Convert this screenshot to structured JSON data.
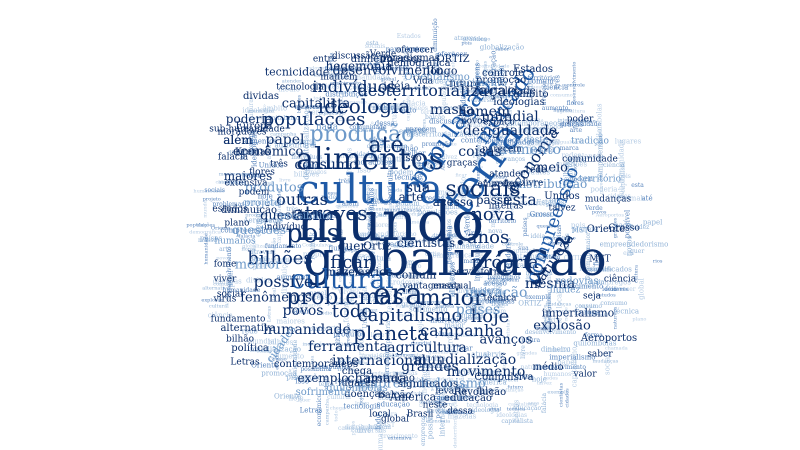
{
  "palette": {
    "dark": "#0b2e6b",
    "mid": "#1f5aa6",
    "light": "#6d99c9",
    "pale": "#9dbbdc"
  },
  "words": [
    {
      "t": "globalização",
      "c": "dark",
      "r": 0
    },
    {
      "t": "mundo",
      "c": "dark",
      "r": 0
    },
    {
      "t": "cultura",
      "c": "mid",
      "r": 0
    },
    {
      "t": "terra",
      "c": "mid",
      "r": -55
    },
    {
      "t": "alimentos",
      "c": "dark",
      "r": 0
    },
    {
      "t": "cultural",
      "c": "mid",
      "r": 0
    },
    {
      "t": "era",
      "c": "dark",
      "r": 0
    },
    {
      "t": "população",
      "c": "mid",
      "r": -55
    },
    {
      "t": "produção",
      "c": "light",
      "r": 0
    },
    {
      "t": "ideologia",
      "c": "dark",
      "r": 0
    },
    {
      "t": "problemas",
      "c": "dark",
      "r": 0
    },
    {
      "t": "maior",
      "c": "dark",
      "r": 0
    },
    {
      "t": "sociais",
      "c": "dark",
      "r": 0
    },
    {
      "t": "atraves",
      "c": "dark",
      "r": 0
    },
    {
      "t": "populações",
      "c": "dark",
      "r": 0
    },
    {
      "t": "até",
      "c": "dark",
      "r": 0
    },
    {
      "t": "pois",
      "c": "dark",
      "r": 0
    },
    {
      "t": "bilhões",
      "c": "dark",
      "r": 0
    },
    {
      "t": "outras",
      "c": "dark",
      "r": 0
    },
    {
      "t": "planeta",
      "c": "dark",
      "r": 0
    },
    {
      "t": "capitalismo",
      "c": "dark",
      "r": 0
    },
    {
      "t": "hoje",
      "c": "dark",
      "r": 0
    },
    {
      "t": "desterritorialização",
      "c": "dark",
      "r": 0
    },
    {
      "t": "ficar",
      "c": "dark",
      "r": 0
    },
    {
      "t": "anos",
      "c": "dark",
      "r": 0
    },
    {
      "t": "nova",
      "c": "dark",
      "r": 0
    },
    {
      "t": "todo",
      "c": "dark",
      "r": 0
    },
    {
      "t": "própria",
      "c": "dark",
      "r": 0
    },
    {
      "t": "humanidade",
      "c": "dark",
      "r": 0
    },
    {
      "t": "ferramenta",
      "c": "dark",
      "r": 0
    },
    {
      "t": "campanha",
      "c": "dark",
      "r": 0
    },
    {
      "t": "indivíduos",
      "c": "dark",
      "r": 0
    },
    {
      "t": "massa",
      "c": "dark",
      "r": 0
    },
    {
      "t": "países",
      "c": "light",
      "r": 0
    },
    {
      "t": "possível",
      "c": "dark",
      "r": 0
    },
    {
      "t": "povos",
      "c": "dark",
      "r": 0
    },
    {
      "t": "agricultura",
      "c": "dark",
      "r": 0
    },
    {
      "t": "mundialização",
      "c": "dark",
      "r": 0
    },
    {
      "t": "internacional",
      "c": "dark",
      "r": 0
    },
    {
      "t": "grandes",
      "c": "dark",
      "r": 0
    },
    {
      "t": "movimento",
      "c": "dark",
      "r": 0
    },
    {
      "t": "empreendedorismo",
      "c": "light",
      "r": 0
    },
    {
      "t": "chamada",
      "c": "dark",
      "r": 0
    },
    {
      "t": "coisas",
      "c": "dark",
      "r": 0
    },
    {
      "t": "desigualdade",
      "c": "dark",
      "r": 0
    },
    {
      "t": "mercado",
      "c": "mid",
      "r": -55
    },
    {
      "t": "consumo",
      "c": "dark",
      "r": 0
    },
    {
      "t": "econômico",
      "c": "dark",
      "r": 0
    },
    {
      "t": "papel",
      "c": "dark",
      "r": 0
    },
    {
      "t": "homem",
      "c": "dark",
      "r": 0
    },
    {
      "t": "mundial",
      "c": "dark",
      "r": 0
    },
    {
      "t": "capitalista",
      "c": "dark",
      "r": 0
    },
    {
      "t": "desenvolvimento",
      "c": "dark",
      "r": 0
    },
    {
      "t": "economia",
      "c": "dark",
      "r": -55
    },
    {
      "t": "aumento",
      "c": "light",
      "r": 0
    },
    {
      "t": "esta",
      "c": "dark",
      "r": 0
    },
    {
      "t": "sua",
      "c": "dark",
      "r": 0
    },
    {
      "t": "passa",
      "c": "dark",
      "r": 0
    },
    {
      "t": "fenômenos",
      "c": "dark",
      "r": 0
    },
    {
      "t": "melhor",
      "c": "light",
      "r": 0
    },
    {
      "t": "questão",
      "c": "dark",
      "r": 0
    },
    {
      "t": "produtos",
      "c": "light",
      "r": 0
    },
    {
      "t": "maiores",
      "c": "dark",
      "r": 0
    },
    {
      "t": "poderia",
      "c": "dark",
      "r": 0
    },
    {
      "t": "além",
      "c": "dark",
      "r": 0
    },
    {
      "t": "inovação",
      "c": "light",
      "r": 0
    },
    {
      "t": "exemplo",
      "c": "dark",
      "r": 0
    },
    {
      "t": "explosão",
      "c": "dark",
      "r": 0
    },
    {
      "t": "avanços",
      "c": "dark",
      "r": 0
    },
    {
      "t": "meio",
      "c": "dark",
      "r": 0
    },
    {
      "t": "distribuição",
      "c": "light",
      "r": 0
    },
    {
      "t": "compreensão",
      "c": "mid",
      "r": -70
    },
    {
      "t": "natureza",
      "c": "dark",
      "r": -55
    },
    {
      "t": "mesma",
      "c": "dark",
      "r": 0
    },
    {
      "t": "cientistas",
      "c": "dark",
      "r": 0
    },
    {
      "t": "acesso",
      "c": "dark",
      "r": 0
    },
    {
      "t": "arte",
      "c": "dark",
      "r": 0
    },
    {
      "t": "rios",
      "c": "dark",
      "r": 0
    },
    {
      "t": "comum",
      "c": "dark",
      "r": 0
    },
    {
      "t": "mazelas",
      "c": "dark",
      "r": 0
    },
    {
      "t": "Ortiz",
      "c": "dark",
      "r": 0
    },
    {
      "t": "quer",
      "c": "dark",
      "r": 0
    },
    {
      "t": "hegemonia",
      "c": "dark",
      "r": 0
    },
    {
      "t": "tecnicidade",
      "c": "dark",
      "r": 0
    },
    {
      "t": "Kremak",
      "c": "dark",
      "r": 0
    },
    {
      "t": "Oriente",
      "c": "dark",
      "r": 0
    },
    {
      "t": "Grosso",
      "c": "dark",
      "r": 0
    },
    {
      "t": "Unidos",
      "c": "dark",
      "r": 0
    },
    {
      "t": "imperialismo",
      "c": "dark",
      "r": 0
    },
    {
      "t": "Aeroportos",
      "c": "dark",
      "r": 0
    },
    {
      "t": "Revolução",
      "c": "dark",
      "r": 0
    },
    {
      "t": "educação",
      "c": "dark",
      "r": 0
    },
    {
      "t": "América",
      "c": "dark",
      "r": 0
    },
    {
      "t": "doenças",
      "c": "dark",
      "r": 0
    },
    {
      "t": "balcão",
      "c": "dark",
      "r": 0
    },
    {
      "t": "sofrimento",
      "c": "light",
      "r": 0
    },
    {
      "t": "Estados",
      "c": "dark",
      "r": 0
    },
    {
      "t": "controle",
      "c": "dark",
      "r": 0
    },
    {
      "t": "ideologias",
      "c": "dark",
      "r": 0
    },
    {
      "t": "futuro",
      "c": "dark",
      "r": 0
    },
    {
      "t": "paradigmas",
      "c": "dark",
      "r": 0
    },
    {
      "t": "Orientalismo",
      "c": "light",
      "r": 0
    },
    {
      "t": "promoção",
      "c": "dark",
      "r": 0
    },
    {
      "t": "mortalidade",
      "c": "dark",
      "r": 0
    },
    {
      "t": "âmbito",
      "c": "dark",
      "r": 0
    },
    {
      "t": "longo",
      "c": "dark",
      "r": 0
    },
    {
      "t": "idéia",
      "c": "dark",
      "r": 0
    },
    {
      "t": "mantém",
      "c": "dark",
      "r": 0
    },
    {
      "t": "tecnologia",
      "c": "dark",
      "r": 0
    },
    {
      "t": "dividas",
      "c": "dark",
      "r": 0
    },
    {
      "t": "Europa",
      "c": "dark",
      "r": 0
    },
    {
      "t": "falácia",
      "c": "dark",
      "r": 0
    },
    {
      "t": "sub-humanidade",
      "c": "dark",
      "r": 0
    },
    {
      "t": "moradores",
      "c": "dark",
      "r": 0
    },
    {
      "t": "possibilita",
      "c": "light",
      "r": 0
    },
    {
      "t": "projeto",
      "c": "light",
      "r": 0
    },
    {
      "t": "diminuição",
      "c": "dark",
      "r": 0
    },
    {
      "t": "questões",
      "c": "light",
      "r": 0
    },
    {
      "t": "rodovias",
      "c": "light",
      "r": 0
    },
    {
      "t": "fluidez",
      "c": "light",
      "r": 0
    },
    {
      "t": "servir",
      "c": "dark",
      "r": 0
    },
    {
      "t": "forma",
      "c": "dark",
      "r": 0
    },
    {
      "t": "atual",
      "c": "dark",
      "r": 0
    },
    {
      "t": "marca",
      "c": "dark",
      "r": 0
    },
    {
      "t": "vantagens",
      "c": "dark",
      "r": 0
    },
    {
      "t": "alternativa",
      "c": "dark",
      "r": 0
    },
    {
      "t": "política",
      "c": "dark",
      "r": 0
    },
    {
      "t": "cidades",
      "c": "light",
      "r": -55
    },
    {
      "t": "significados",
      "c": "dark",
      "r": 0
    },
    {
      "t": "lugares",
      "c": "dark",
      "r": 0
    },
    {
      "t": "abstração",
      "c": "dark",
      "r": 0
    },
    {
      "t": "chega",
      "c": "dark",
      "r": 0
    },
    {
      "t": "levaria",
      "c": "dark",
      "r": 0
    },
    {
      "t": "Compulsiva",
      "c": "dark",
      "r": 0
    },
    {
      "t": "médio",
      "c": "dark",
      "r": 0
    },
    {
      "t": "bilhão",
      "c": "dark",
      "r": 0
    },
    {
      "t": "contemporâneos",
      "c": "dark",
      "r": 0
    },
    {
      "t": "técnica",
      "c": "dark",
      "r": 0
    },
    {
      "t": "quilombolas",
      "c": "light",
      "r": 0
    },
    {
      "t": "Letras",
      "c": "dark",
      "r": 0
    },
    {
      "t": "fundamento",
      "c": "dark",
      "r": 0
    },
    {
      "t": "Verde",
      "c": "dark",
      "r": 0
    },
    {
      "t": "demográfica",
      "c": "dark",
      "r": 0
    },
    {
      "t": "diversos",
      "c": "dark",
      "r": 0
    },
    {
      "t": "dinheiro",
      "c": "dark",
      "r": 0
    },
    {
      "t": "oferecer",
      "c": "dark",
      "r": 0
    },
    {
      "t": "discussão",
      "c": "dark",
      "r": 0
    },
    {
      "t": "ORTIZ",
      "c": "dark",
      "r": 0
    },
    {
      "t": "crescimento",
      "c": "light",
      "r": 0
    },
    {
      "t": "espaço",
      "c": "dark",
      "r": 0
    },
    {
      "t": "novos",
      "c": "dark",
      "r": 0
    },
    {
      "t": "graças",
      "c": "dark",
      "r": 0
    },
    {
      "t": "parecem",
      "c": "dark",
      "r": 0
    },
    {
      "t": "talvez",
      "c": "dark",
      "r": 0
    },
    {
      "t": "empregos",
      "c": "dark",
      "r": 0
    },
    {
      "t": "livre",
      "c": "dark",
      "r": 0
    },
    {
      "t": "atender",
      "c": "dark",
      "r": 0
    },
    {
      "t": "inteiras",
      "c": "dark",
      "r": 0
    },
    {
      "t": "podem",
      "c": "dark",
      "r": 0
    },
    {
      "t": "extensiva",
      "c": "dark",
      "r": 0
    },
    {
      "t": "flores",
      "c": "dark",
      "r": 0
    },
    {
      "t": "plano",
      "c": "dark",
      "r": 0
    },
    {
      "t": "humanos",
      "c": "light",
      "r": 0
    },
    {
      "t": "indivíduo",
      "c": "dark",
      "r": 0
    },
    {
      "t": "três",
      "c": "dark",
      "r": 0
    },
    {
      "t": "Vida",
      "c": "dark",
      "r": 0
    },
    {
      "t": "nada",
      "c": "light",
      "r": 0
    },
    {
      "t": "isso",
      "c": "dark",
      "r": 0
    },
    {
      "t": "seja",
      "c": "dark",
      "r": 0
    },
    {
      "t": "deste",
      "c": "light",
      "r": 0
    },
    {
      "t": "rede",
      "c": "dark",
      "r": 0
    },
    {
      "t": "redes",
      "c": "dark",
      "r": 0
    },
    {
      "t": "MST",
      "c": "dark",
      "r": 0
    },
    {
      "t": "fala",
      "c": "dark",
      "r": 0
    },
    {
      "t": "neste",
      "c": "dark",
      "r": 0
    },
    {
      "t": "dessa",
      "c": "dark",
      "r": 0
    },
    {
      "t": "além",
      "c": "dark",
      "r": 0
    },
    {
      "t": "entre",
      "c": "dark",
      "r": 0
    },
    {
      "t": "comunidade",
      "c": "dark",
      "r": 0
    },
    {
      "t": "mudanças",
      "c": "dark",
      "r": 0
    },
    {
      "t": "Brasil",
      "c": "dark",
      "r": 0
    },
    {
      "t": "viver",
      "c": "dark",
      "r": 0
    },
    {
      "t": "fome",
      "c": "dark",
      "r": 0
    },
    {
      "t": "vírus",
      "c": "dark",
      "r": 0
    },
    {
      "t": "território",
      "c": "light",
      "r": 0
    },
    {
      "t": "tradição",
      "c": "light",
      "r": 0
    },
    {
      "t": "local",
      "c": "dark",
      "r": 0
    },
    {
      "t": "global",
      "c": "dark",
      "r": 0
    },
    {
      "t": "saber",
      "c": "dark",
      "r": 0
    },
    {
      "t": "estudos",
      "c": "dark",
      "r": 0
    },
    {
      "t": "ciência",
      "c": "dark",
      "r": 0
    },
    {
      "t": "social",
      "c": "dark",
      "r": 0
    },
    {
      "t": "valor",
      "c": "dark",
      "r": 0
    },
    {
      "t": "poder",
      "c": "dark",
      "r": 0
    }
  ]
}
